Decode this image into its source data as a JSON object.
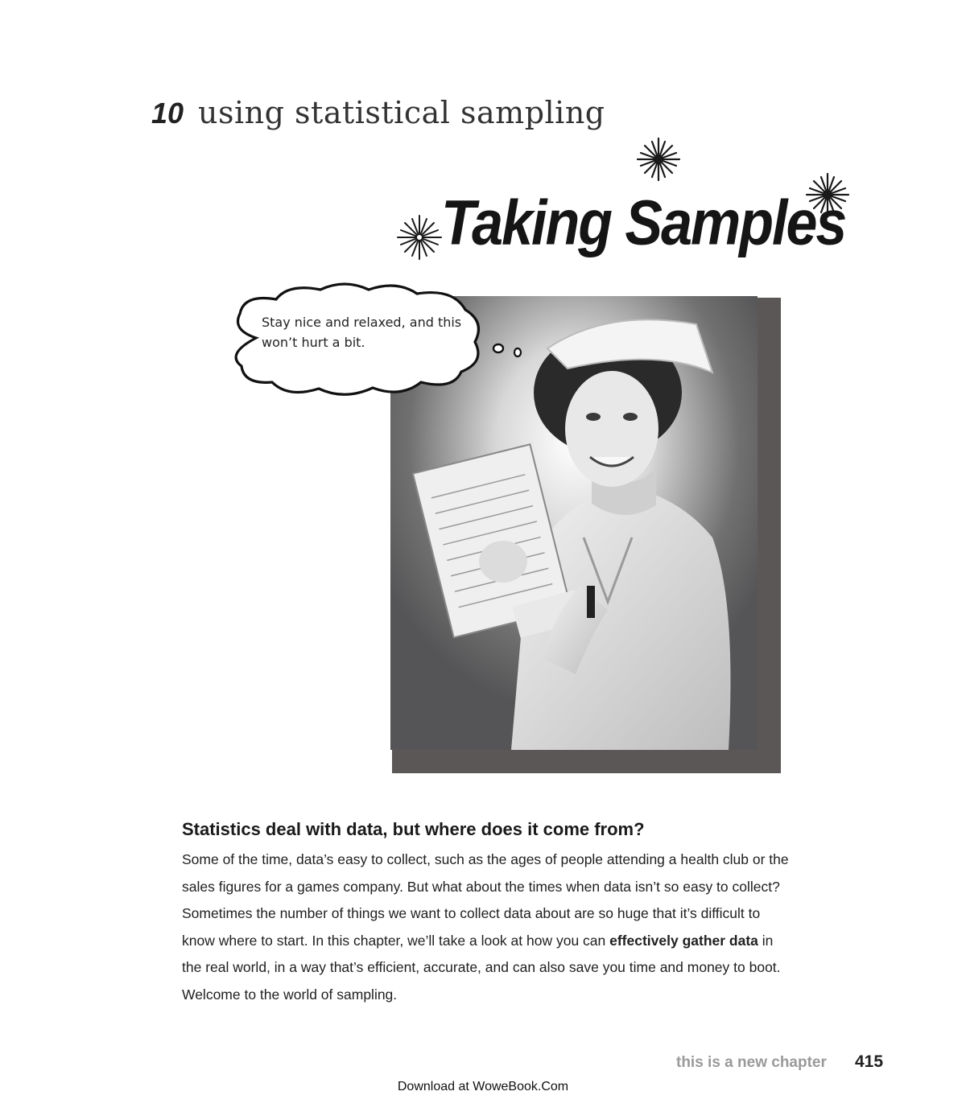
{
  "chapter": {
    "number": "10",
    "subtitle": "using statistical sampling",
    "title": "Taking Samples"
  },
  "illustration": {
    "thought_bubble_text": "Stay nice and relaxed, and this won’t hurt a bit.",
    "photo_subject": "nurse-holding-clipboard-icon"
  },
  "content": {
    "heading": "Statistics deal with data, but where does it come from?",
    "paragraph_part1": "Some of the time, data’s easy to collect, such as the ages of people attending a health club or the sales figures for a games company. But what about the times when data isn’t so easy to collect? Sometimes the number of things we want to collect data about are so huge that it’s difficult to know where to start. In this chapter, we’ll take a look at how you can ",
    "paragraph_bold": "effectively gather data",
    "paragraph_part2": " in the real world, in a way that’s efficient, accurate, and can also save you time and money to boot. Welcome to the world of sampling."
  },
  "footer": {
    "label": "this is a new chapter",
    "page_number": "415",
    "download_note": "Download at WoweBook.Com"
  }
}
